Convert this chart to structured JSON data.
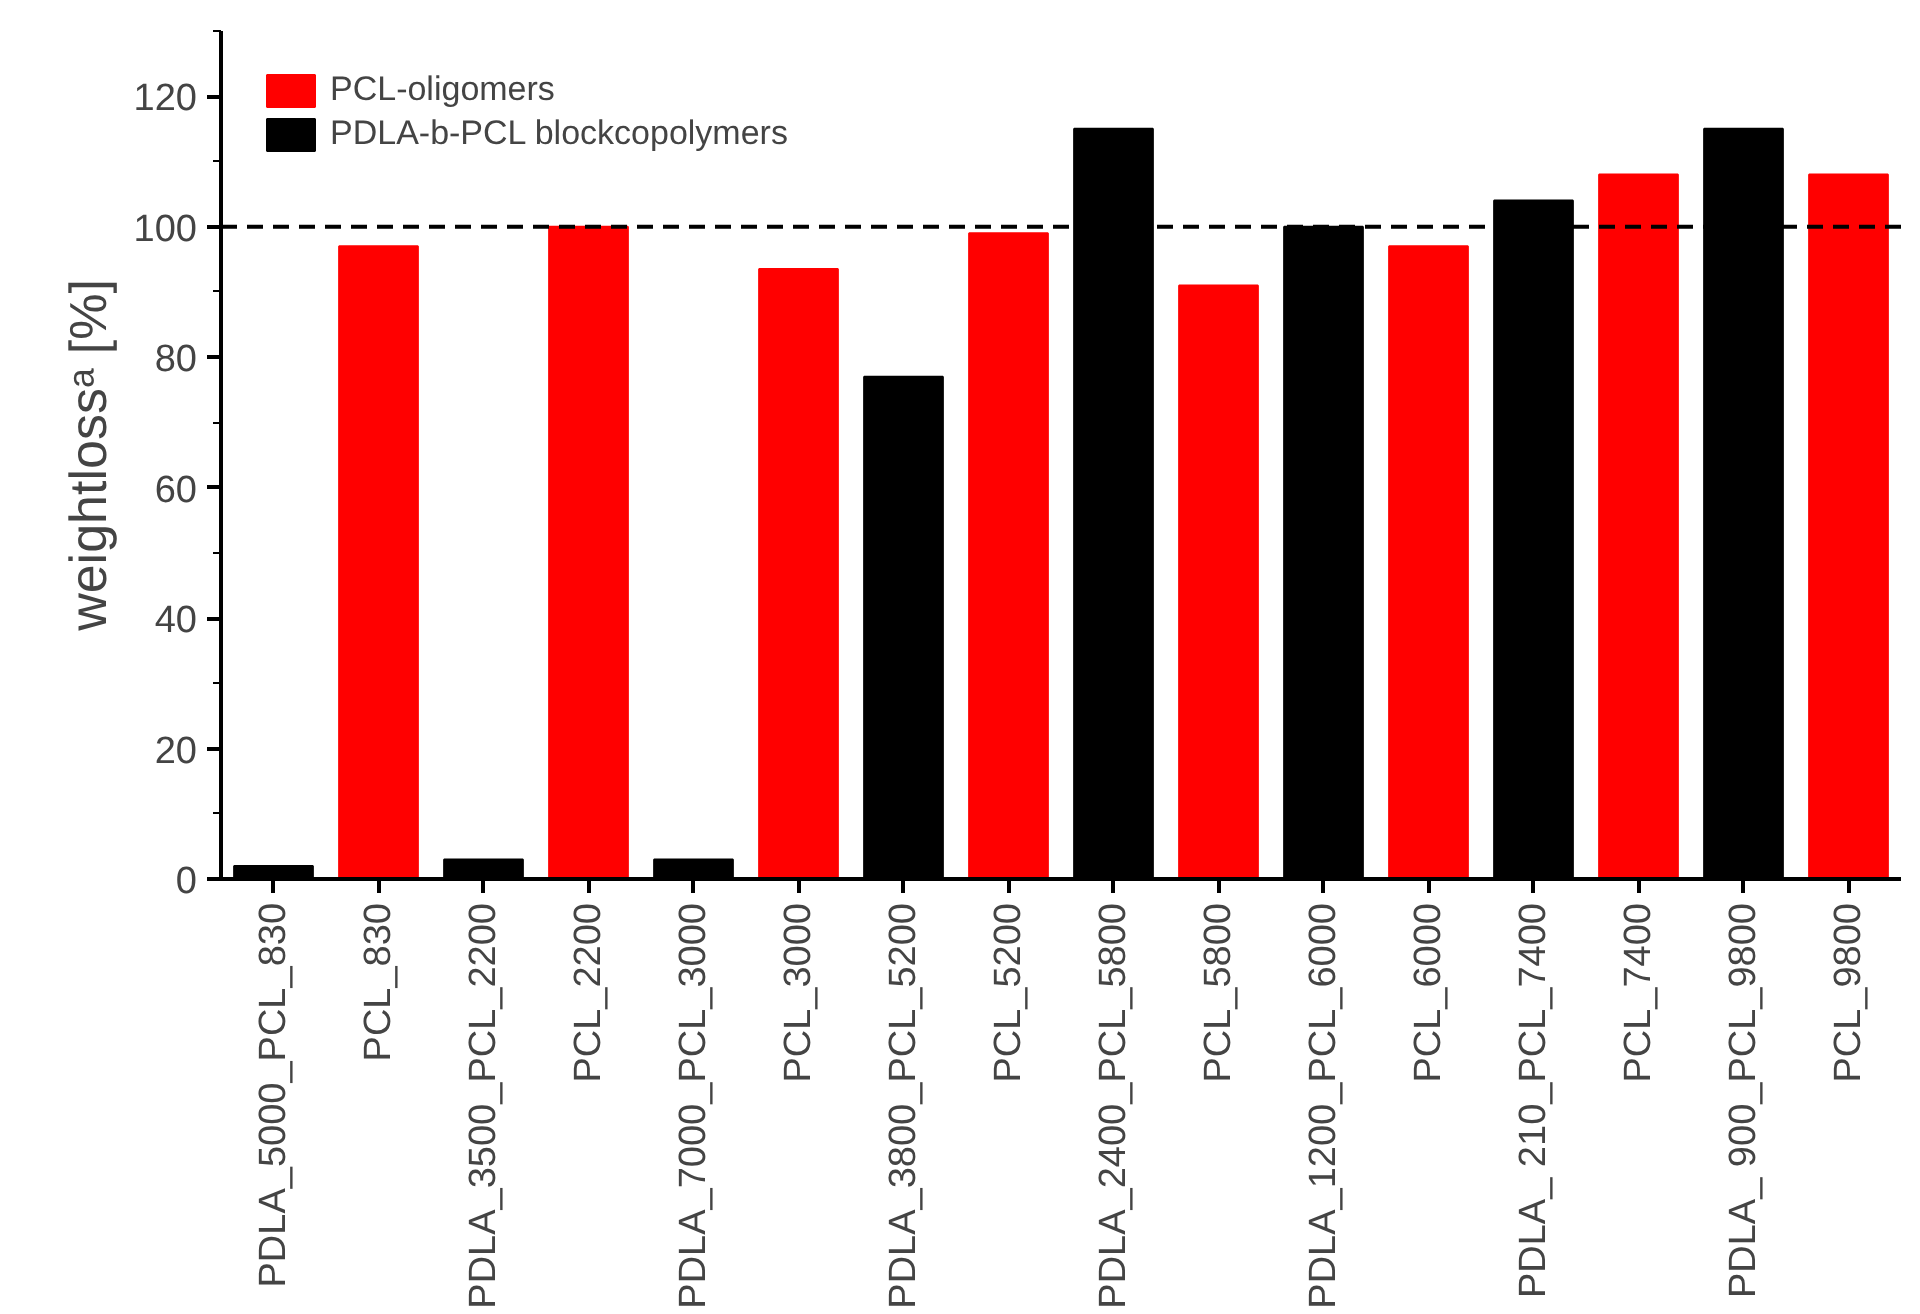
{
  "chart_data": {
    "type": "bar",
    "ylabel": "weightlossᵃ [%]",
    "categories": [
      "PDLA_5000_PCL_830",
      "PCL_830",
      "PDLA_3500_PCL_2200",
      "PCL_2200",
      "PDLA_7000_PCL_3000",
      "PCL_3000",
      "PDLA_3800_PCL_5200",
      "PCL_5200",
      "PDLA_2400_PCL_5800",
      "PCL_5800",
      "PDLA_1200_PCL_6000",
      "PCL_6000",
      "PDLA_ 210_PCL_7400",
      "PCL_7400",
      "PDLA_ 900_PCL_9800",
      "PCL_9800"
    ],
    "series": [
      {
        "name": "PCL-oligomers",
        "color": "#ff0000",
        "values": [
          null,
          97,
          null,
          100,
          null,
          93.5,
          null,
          99,
          null,
          91,
          null,
          97,
          null,
          108,
          null,
          108
        ]
      },
      {
        "name": "PDLA-b-PCL blockcopolymers",
        "color": "#000000",
        "values": [
          2,
          null,
          3,
          null,
          3,
          null,
          77,
          null,
          115,
          null,
          100,
          null,
          104,
          null,
          115,
          null
        ]
      }
    ],
    "ylim": [
      0,
      130
    ],
    "yticks": [
      0,
      20,
      40,
      60,
      80,
      100,
      120
    ],
    "ref_lines": [
      {
        "axis": "y",
        "value": 100,
        "line_style": "dashed"
      }
    ],
    "legend": "top left",
    "grid": false
  }
}
